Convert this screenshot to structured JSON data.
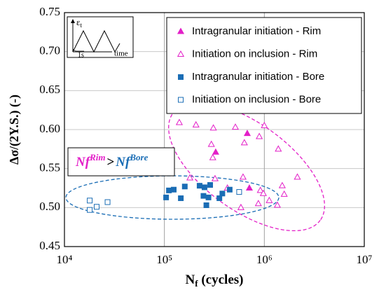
{
  "chart_data": {
    "type": "scatter",
    "x_label": {
      "main": "N",
      "sub": "f",
      "rest": " (cycles)"
    },
    "y_label": "Δσ/(2Y.S.)  (-)",
    "x_log": true,
    "grid": true,
    "legend": "upper right",
    "xlim": [
      10000,
      10000000
    ],
    "ylim": [
      0.45,
      0.75
    ],
    "xticks": [
      {
        "value": 10000,
        "label": "10⁴"
      },
      {
        "value": 100000,
        "label": "10⁵"
      },
      {
        "value": 1000000,
        "label": "10⁶"
      },
      {
        "value": 10000000,
        "label": "10⁷"
      }
    ],
    "yticks": [
      0.45,
      {
        "value": 0.5,
        "label": "0.50"
      },
      0.55,
      {
        "value": 0.6,
        "label": "0.60"
      },
      0.65,
      {
        "value": 0.7,
        "label": "0.70"
      },
      0.75
    ],
    "series": [
      {
        "name": "Intragranular initiation - Rim",
        "color": "#e31fc8",
        "marker": "triangle",
        "filled": true,
        "x": [
          675000,
          326000,
          708000
        ],
        "values": [
          0.595,
          0.571,
          0.525
        ]
      },
      {
        "name": "Initiation on inclusion - Rim",
        "color": "#e31fc8",
        "marker": "triangle",
        "filled": false,
        "x": [
          141000,
          207000,
          309000,
          513000,
          631000,
          1000000,
          890000,
          1380000,
          295000,
          305000,
          321000,
          180000,
          427000,
          612000,
          912000,
          977000,
          1120000,
          583000,
          1580000,
          1510000,
          2140000,
          1350000,
          871000
        ],
        "values": [
          0.609,
          0.606,
          0.602,
          0.603,
          0.583,
          0.605,
          0.591,
          0.575,
          0.581,
          0.564,
          0.537,
          0.538,
          0.525,
          0.539,
          0.522,
          0.518,
          0.509,
          0.5,
          0.517,
          0.528,
          0.539,
          0.503,
          0.505
        ]
      },
      {
        "name": "Intragranular initiation - Bore",
        "color": "#1a6db5",
        "marker": "square",
        "filled": true,
        "x": [
          104000,
          111000,
          124000,
          146000,
          160000,
          225000,
          252000,
          287000,
          276000,
          263000,
          355000,
          380000,
          450000,
          246000
        ],
        "values": [
          0.513,
          0.522,
          0.523,
          0.512,
          0.527,
          0.528,
          0.526,
          0.529,
          0.513,
          0.503,
          0.512,
          0.518,
          0.523,
          0.515
        ]
      },
      {
        "name": "Initiation on inclusion - Bore",
        "color": "#1a6db5",
        "marker": "square",
        "filled": false,
        "x": [
          17900,
          17900,
          21000,
          27000,
          560000
        ],
        "values": [
          0.509,
          0.497,
          0.501,
          0.507,
          0.52
        ]
      }
    ],
    "annotation": {
      "left": "Nf",
      "left_sup": "Rim",
      "op": ">",
      "right": "Nf",
      "right_sup": "Bore"
    },
    "inset": {
      "y_main": "ε",
      "y_sub": "t",
      "x_label": "time",
      "period": "1s"
    }
  }
}
